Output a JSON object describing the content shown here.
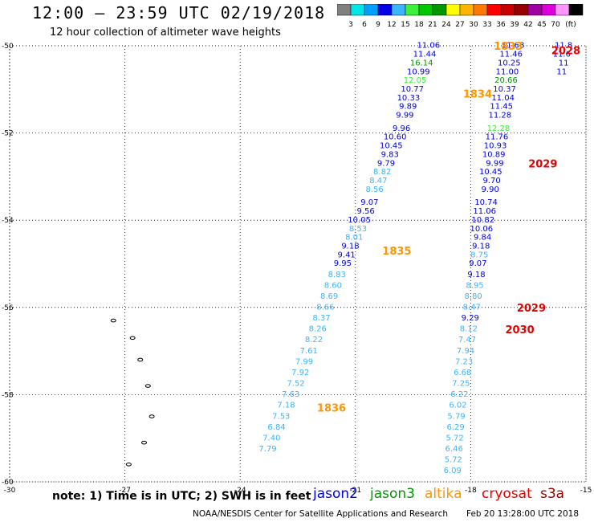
{
  "header": {
    "title": "12:00 — 23:59 UTC 02/19/2018",
    "subtitle": "12 hour collection of altimeter wave heights"
  },
  "colorbar": {
    "unit": "(ft)",
    "colors": [
      "#808080",
      "#00e5e5",
      "#00a0ff",
      "#0000e6",
      "#3cb4ff",
      "#3cf03c",
      "#00c800",
      "#009600",
      "#ffff00",
      "#ffb400",
      "#ff7800",
      "#ff0000",
      "#c80000",
      "#960000",
      "#a000a0",
      "#dc00dc",
      "#ff96ff",
      "#000000"
    ],
    "labels": [
      "3",
      "6",
      "9",
      "12",
      "15",
      "18",
      "21",
      "24",
      "27",
      "30",
      "33",
      "36",
      "39",
      "42",
      "45",
      "70"
    ]
  },
  "axes": {
    "x_ticks": [
      "-30",
      "-27",
      "-24",
      "-21",
      "-18",
      "-15"
    ],
    "y_ticks": [
      "-50",
      "-52",
      "-54",
      "-56",
      "-58",
      "-60"
    ]
  },
  "satellites": {
    "jason2": {
      "name": "jason2",
      "color": "#0000e6"
    },
    "jason3": {
      "name": "jason3",
      "color": "#009600"
    },
    "altika": {
      "name": "altika",
      "color": "#ff9600"
    },
    "cryosat": {
      "name": "cryosat",
      "color": "#e60000"
    },
    "s3a": {
      "name": "s3a",
      "color": "#960000"
    }
  },
  "passes": [
    {
      "satellite": "altika",
      "time_label": "1833",
      "lon": -17.4,
      "lat": -50.0
    },
    {
      "satellite": "altika",
      "time_label": "1834",
      "lon": -18.2,
      "lat": -51.1
    },
    {
      "satellite": "altika",
      "time_label": "1835",
      "lon": -20.3,
      "lat": -54.7
    },
    {
      "satellite": "altika",
      "time_label": "1836",
      "lon": -22.0,
      "lat": -58.3
    },
    {
      "satellite": "cryosat",
      "time_label": "2028",
      "lon": -15.9,
      "lat": -50.1
    },
    {
      "satellite": "cryosat",
      "time_label": "2029",
      "lon": -16.5,
      "lat": -52.7
    },
    {
      "satellite": "cryosat",
      "time_label": "2029",
      "lon": -16.8,
      "lat": -56.0
    },
    {
      "satellite": "cryosat",
      "time_label": "2030",
      "lon": -17.1,
      "lat": -56.5
    }
  ],
  "coast_markers": [
    {
      "lon": -27.3,
      "lat": -56.3
    },
    {
      "lon": -26.8,
      "lat": -56.7
    },
    {
      "lon": -26.6,
      "lat": -57.2
    },
    {
      "lon": -26.4,
      "lat": -57.8
    },
    {
      "lon": -26.3,
      "lat": -58.5
    },
    {
      "lon": -26.5,
      "lat": -59.1
    },
    {
      "lon": -26.9,
      "lat": -59.6
    }
  ],
  "tracks": [
    {
      "satellite": "jason2",
      "color": "#0000e6",
      "points": [
        {
          "lon": -18.8,
          "lat": -50.05,
          "v": "11.06"
        },
        {
          "lon": -18.9,
          "lat": -50.25,
          "v": "11.44"
        },
        {
          "lon": -18.98,
          "lat": -50.45,
          "v": "16.14",
          "color": "#009600"
        },
        {
          "lon": -19.06,
          "lat": -50.65,
          "v": "10.99"
        },
        {
          "lon": -19.15,
          "lat": -50.85,
          "v": "12.05",
          "color": "#3cf03c"
        },
        {
          "lon": -19.22,
          "lat": -51.05,
          "v": "10.77"
        },
        {
          "lon": -19.32,
          "lat": -51.25,
          "v": "10.33"
        },
        {
          "lon": -19.4,
          "lat": -51.45,
          "v": "9.89"
        },
        {
          "lon": -19.48,
          "lat": -51.65,
          "v": "9.99"
        },
        {
          "lon": -19.57,
          "lat": -51.95,
          "v": "9.96"
        },
        {
          "lon": -19.67,
          "lat": -52.15,
          "v": "10.60"
        },
        {
          "lon": -19.77,
          "lat": -52.35,
          "v": "10.45"
        },
        {
          "lon": -19.87,
          "lat": -52.55,
          "v": "9.83"
        },
        {
          "lon": -19.97,
          "lat": -52.75,
          "v": "9.79"
        },
        {
          "lon": -20.07,
          "lat": -52.95,
          "v": "8.82",
          "color": "#3cb4ff"
        },
        {
          "lon": -20.17,
          "lat": -53.15,
          "v": "8.47",
          "color": "#3cb4ff"
        },
        {
          "lon": -20.27,
          "lat": -53.35,
          "v": "8.56",
          "color": "#3cb4ff"
        },
        {
          "lon": -20.4,
          "lat": -53.65,
          "v": "9.07"
        },
        {
          "lon": -20.5,
          "lat": -53.85,
          "v": "9.56"
        },
        {
          "lon": -20.6,
          "lat": -54.05,
          "v": "10.05"
        },
        {
          "lon": -20.7,
          "lat": -54.25,
          "v": "8.53",
          "color": "#3cb4ff"
        },
        {
          "lon": -20.8,
          "lat": -54.45,
          "v": "8.01",
          "color": "#3cb4ff"
        },
        {
          "lon": -20.9,
          "lat": -54.65,
          "v": "9.18"
        },
        {
          "lon": -21.0,
          "lat": -54.85,
          "v": "9.41"
        },
        {
          "lon": -21.1,
          "lat": -55.05,
          "v": "9.95"
        },
        {
          "lon": -21.25,
          "lat": -55.3,
          "v": "8.83",
          "color": "#3cb4ff"
        },
        {
          "lon": -21.35,
          "lat": -55.55,
          "v": "8.60",
          "color": "#3cb4ff"
        },
        {
          "lon": -21.45,
          "lat": -55.8,
          "v": "8.69",
          "color": "#3cb4ff"
        },
        {
          "lon": -21.55,
          "lat": -56.05,
          "v": "8.66",
          "color": "#3cb4ff"
        },
        {
          "lon": -21.65,
          "lat": -56.3,
          "v": "8.37",
          "color": "#3cb4ff"
        },
        {
          "lon": -21.75,
          "lat": -56.55,
          "v": "8.26",
          "color": "#3cb4ff"
        },
        {
          "lon": -21.85,
          "lat": -56.8,
          "v": "8.22",
          "color": "#3cb4ff"
        },
        {
          "lon": -21.98,
          "lat": -57.05,
          "v": "7.61",
          "color": "#3cb4ff"
        },
        {
          "lon": -22.1,
          "lat": -57.3,
          "v": "7.99",
          "color": "#3cb4ff"
        },
        {
          "lon": -22.2,
          "lat": -57.55,
          "v": "7.92",
          "color": "#3cb4ff"
        },
        {
          "lon": -22.32,
          "lat": -57.8,
          "v": "7.52",
          "color": "#3cb4ff"
        },
        {
          "lon": -22.45,
          "lat": -58.05,
          "v": "7.63",
          "color": "#3cb4ff"
        },
        {
          "lon": -22.57,
          "lat": -58.3,
          "v": "7.18",
          "color": "#3cb4ff"
        },
        {
          "lon": -22.7,
          "lat": -58.55,
          "v": "7.53",
          "color": "#3cb4ff"
        },
        {
          "lon": -22.82,
          "lat": -58.8,
          "v": "6.84",
          "color": "#3cb4ff"
        },
        {
          "lon": -22.95,
          "lat": -59.05,
          "v": "7.40",
          "color": "#3cb4ff"
        },
        {
          "lon": -23.05,
          "lat": -59.3,
          "v": "7.79",
          "color": "#3cb4ff"
        }
      ]
    },
    {
      "satellite": "cryosat",
      "color": "#0000e6",
      "points": [
        {
          "lon": -16.6,
          "lat": -50.05,
          "v": "11.68"
        },
        {
          "lon": -16.65,
          "lat": -50.25,
          "v": "11.46"
        },
        {
          "lon": -16.7,
          "lat": -50.45,
          "v": "10.25"
        },
        {
          "lon": -16.75,
          "lat": -50.65,
          "v": "11.00"
        },
        {
          "lon": -16.78,
          "lat": -50.85,
          "v": "20.66",
          "color": "#009600"
        },
        {
          "lon": -16.82,
          "lat": -51.05,
          "v": "10.37"
        },
        {
          "lon": -16.86,
          "lat": -51.25,
          "v": "11.04"
        },
        {
          "lon": -16.9,
          "lat": -51.45,
          "v": "11.45"
        },
        {
          "lon": -16.94,
          "lat": -51.65,
          "v": "11.28"
        },
        {
          "lon": -16.98,
          "lat": -51.95,
          "v": "12.28",
          "color": "#3cf03c"
        },
        {
          "lon": -17.02,
          "lat": -52.15,
          "v": "11.76"
        },
        {
          "lon": -17.06,
          "lat": -52.35,
          "v": "10.93"
        },
        {
          "lon": -17.1,
          "lat": -52.55,
          "v": "10.89"
        },
        {
          "lon": -17.14,
          "lat": -52.75,
          "v": "9.99"
        },
        {
          "lon": -17.18,
          "lat": -52.95,
          "v": "10.45"
        },
        {
          "lon": -17.22,
          "lat": -53.15,
          "v": "9.70"
        },
        {
          "lon": -17.26,
          "lat": -53.35,
          "v": "9.90"
        },
        {
          "lon": -17.3,
          "lat": -53.65,
          "v": "10.74"
        },
        {
          "lon": -17.34,
          "lat": -53.85,
          "v": "11.06"
        },
        {
          "lon": -17.38,
          "lat": -54.05,
          "v": "10.82"
        },
        {
          "lon": -17.42,
          "lat": -54.25,
          "v": "10.06"
        },
        {
          "lon": -17.46,
          "lat": -54.45,
          "v": "9.84"
        },
        {
          "lon": -17.5,
          "lat": -54.65,
          "v": "9.18"
        },
        {
          "lon": -17.54,
          "lat": -54.85,
          "v": "8.75",
          "color": "#3cb4ff"
        },
        {
          "lon": -17.58,
          "lat": -55.05,
          "v": "9.07"
        },
        {
          "lon": -17.62,
          "lat": -55.3,
          "v": "9.18"
        },
        {
          "lon": -17.66,
          "lat": -55.55,
          "v": "8.95",
          "color": "#3cb4ff"
        },
        {
          "lon": -17.7,
          "lat": -55.8,
          "v": "8.80",
          "color": "#3cb4ff"
        },
        {
          "lon": -17.74,
          "lat": -56.05,
          "v": "8.47",
          "color": "#3cb4ff"
        },
        {
          "lon": -17.78,
          "lat": -56.3,
          "v": "9.29"
        },
        {
          "lon": -17.82,
          "lat": -56.55,
          "v": "8.12",
          "color": "#3cb4ff"
        },
        {
          "lon": -17.86,
          "lat": -56.8,
          "v": "7.47",
          "color": "#3cb4ff"
        },
        {
          "lon": -17.9,
          "lat": -57.05,
          "v": "7.94",
          "color": "#3cb4ff"
        },
        {
          "lon": -17.94,
          "lat": -57.3,
          "v": "7.23",
          "color": "#3cb4ff"
        },
        {
          "lon": -17.98,
          "lat": -57.55,
          "v": "6.68",
          "color": "#3cb4ff"
        },
        {
          "lon": -18.02,
          "lat": -57.8,
          "v": "7.25",
          "color": "#3cb4ff"
        },
        {
          "lon": -18.06,
          "lat": -58.05,
          "v": "6.22",
          "color": "#3cb4ff"
        },
        {
          "lon": -18.1,
          "lat": -58.3,
          "v": "6.02",
          "color": "#3cb4ff"
        },
        {
          "lon": -18.14,
          "lat": -58.55,
          "v": "5.79",
          "color": "#3cb4ff"
        },
        {
          "lon": -18.16,
          "lat": -58.8,
          "v": "6.29",
          "color": "#3cb4ff"
        },
        {
          "lon": -18.18,
          "lat": -59.05,
          "v": "5.72",
          "color": "#3cb4ff"
        },
        {
          "lon": -18.2,
          "lat": -59.3,
          "v": "6.46",
          "color": "#3cb4ff"
        },
        {
          "lon": -18.22,
          "lat": -59.55,
          "v": "5.72",
          "color": "#3cb4ff"
        },
        {
          "lon": -18.24,
          "lat": -59.8,
          "v": "6.09",
          "color": "#3cb4ff"
        }
      ]
    },
    {
      "satellite": "edge",
      "color": "#0000e6",
      "points": [
        {
          "lon": -15.35,
          "lat": -50.05,
          "v": "11.8"
        },
        {
          "lon": -15.4,
          "lat": -50.25,
          "v": "11.6"
        },
        {
          "lon": -15.45,
          "lat": -50.45,
          "v": "11"
        },
        {
          "lon": -15.5,
          "lat": -50.65,
          "v": "11"
        }
      ]
    }
  ],
  "footer": {
    "note": "note: 1) Time is in UTC; 2) SWH is in feet",
    "credit": "NOAA/NESDIS Center for Satellite Applications and Research",
    "timestamp": "Feb 20 13:28:00 UTC 2018"
  }
}
